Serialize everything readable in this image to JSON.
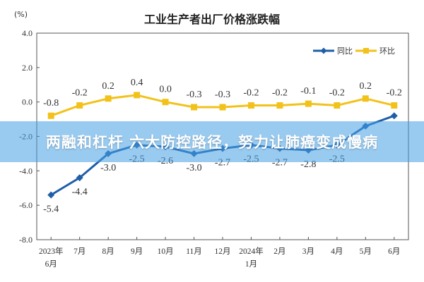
{
  "chart_data": {
    "type": "line",
    "title": "工业生产者出厂价格涨跌幅",
    "ylabel": "(%)",
    "ylim": [
      -8.0,
      4.0
    ],
    "yticks": [
      "4.0",
      "2.0",
      "0.0",
      "-2.0",
      "-4.0",
      "-6.0",
      "-8.0"
    ],
    "ytick_values": [
      4,
      2,
      0,
      -2,
      -4,
      -6,
      -8
    ],
    "grid": false,
    "legend_position": "top-right",
    "categories": [
      [
        "2023年",
        "6月"
      ],
      [
        "7月"
      ],
      [
        "8月"
      ],
      [
        "9月"
      ],
      [
        "10月"
      ],
      [
        "11月"
      ],
      [
        "12月"
      ],
      [
        "2024年",
        "1月"
      ],
      [
        "2月"
      ],
      [
        "3月"
      ],
      [
        "4月"
      ],
      [
        "5月"
      ],
      [
        "6月"
      ]
    ],
    "series": [
      {
        "name": "同比",
        "color": "#1f5fa8",
        "values": [
          -5.4,
          -4.4,
          -3.0,
          -2.5,
          -2.6,
          -3.0,
          -2.7,
          -2.5,
          -2.7,
          -2.8,
          -2.5,
          -1.4,
          -0.8
        ],
        "labels": [
          "-5.4",
          "-4.4",
          "-3.0",
          "-2.5",
          "-2.6",
          "-3.0",
          "-2.7",
          "-2.5",
          "-2.7",
          "-2.8",
          "-2.5",
          "",
          ""
        ]
      },
      {
        "name": "环比",
        "color": "#f2c21b",
        "values": [
          -0.8,
          -0.2,
          0.2,
          0.4,
          0.0,
          -0.3,
          -0.3,
          -0.2,
          -0.2,
          -0.1,
          -0.2,
          0.2,
          -0.2
        ],
        "labels": [
          "-0.8",
          "-0.2",
          "0.2",
          "0.4",
          "0.0",
          "-0.3",
          "-0.3",
          "-0.2",
          "-0.2",
          "-0.1",
          "-0.2",
          "0.2",
          "-0.2"
        ]
      }
    ]
  },
  "overlay": {
    "text": "两融和杠杆 六大防控路径，努力让肺癌变成慢病"
  }
}
